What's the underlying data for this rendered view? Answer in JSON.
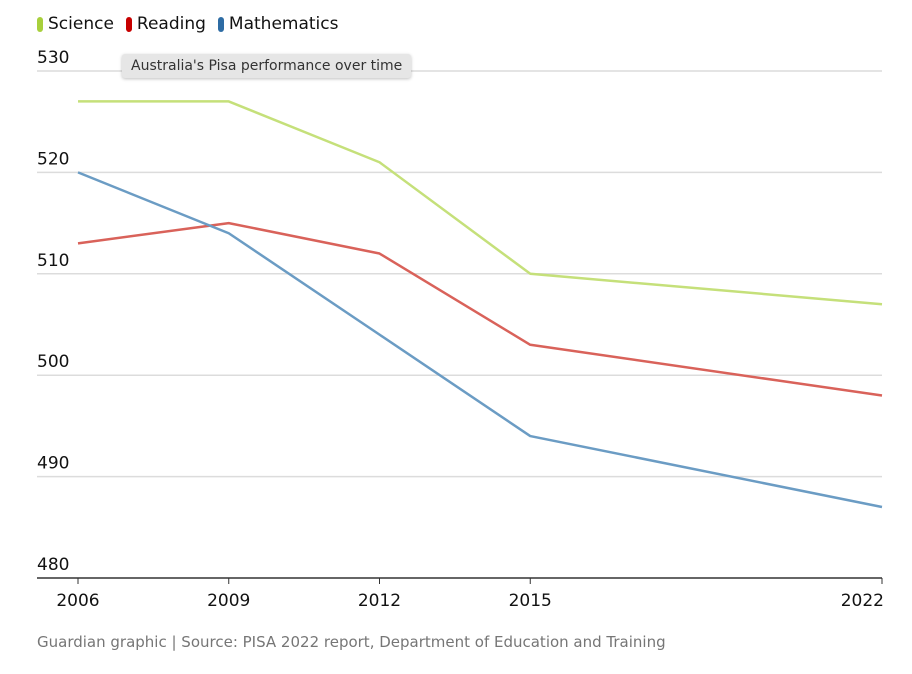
{
  "chart_data": {
    "type": "line",
    "title": "Australia's Pisa performance over time",
    "xlabel": "",
    "ylabel": "",
    "x": [
      2006,
      2009,
      2012,
      2015,
      2022
    ],
    "xticks": [
      "2006",
      "2009",
      "2012",
      "2015",
      "2022"
    ],
    "yticks": [
      480,
      490,
      500,
      510,
      520,
      530
    ],
    "ylim": [
      480,
      530
    ],
    "xlim": [
      2006,
      2022
    ],
    "grid": true,
    "legend_position": "top-left",
    "series": [
      {
        "name": "Science",
        "color": "#c5e07a",
        "swatch": "#a8d03c",
        "values": [
          527,
          527,
          521,
          510,
          507
        ]
      },
      {
        "name": "Reading",
        "color": "#d9625a",
        "swatch": "#c70000",
        "values": [
          513,
          515,
          512,
          503,
          498
        ]
      },
      {
        "name": "Mathematics",
        "color": "#6b9cc4",
        "swatch": "#2e6ca4",
        "values": [
          520,
          514,
          504,
          494,
          487
        ]
      }
    ]
  },
  "tooltip": "Australia's Pisa performance over time",
  "footer": "Guardian graphic | Source: PISA 2022 report, Department of Education and Training"
}
